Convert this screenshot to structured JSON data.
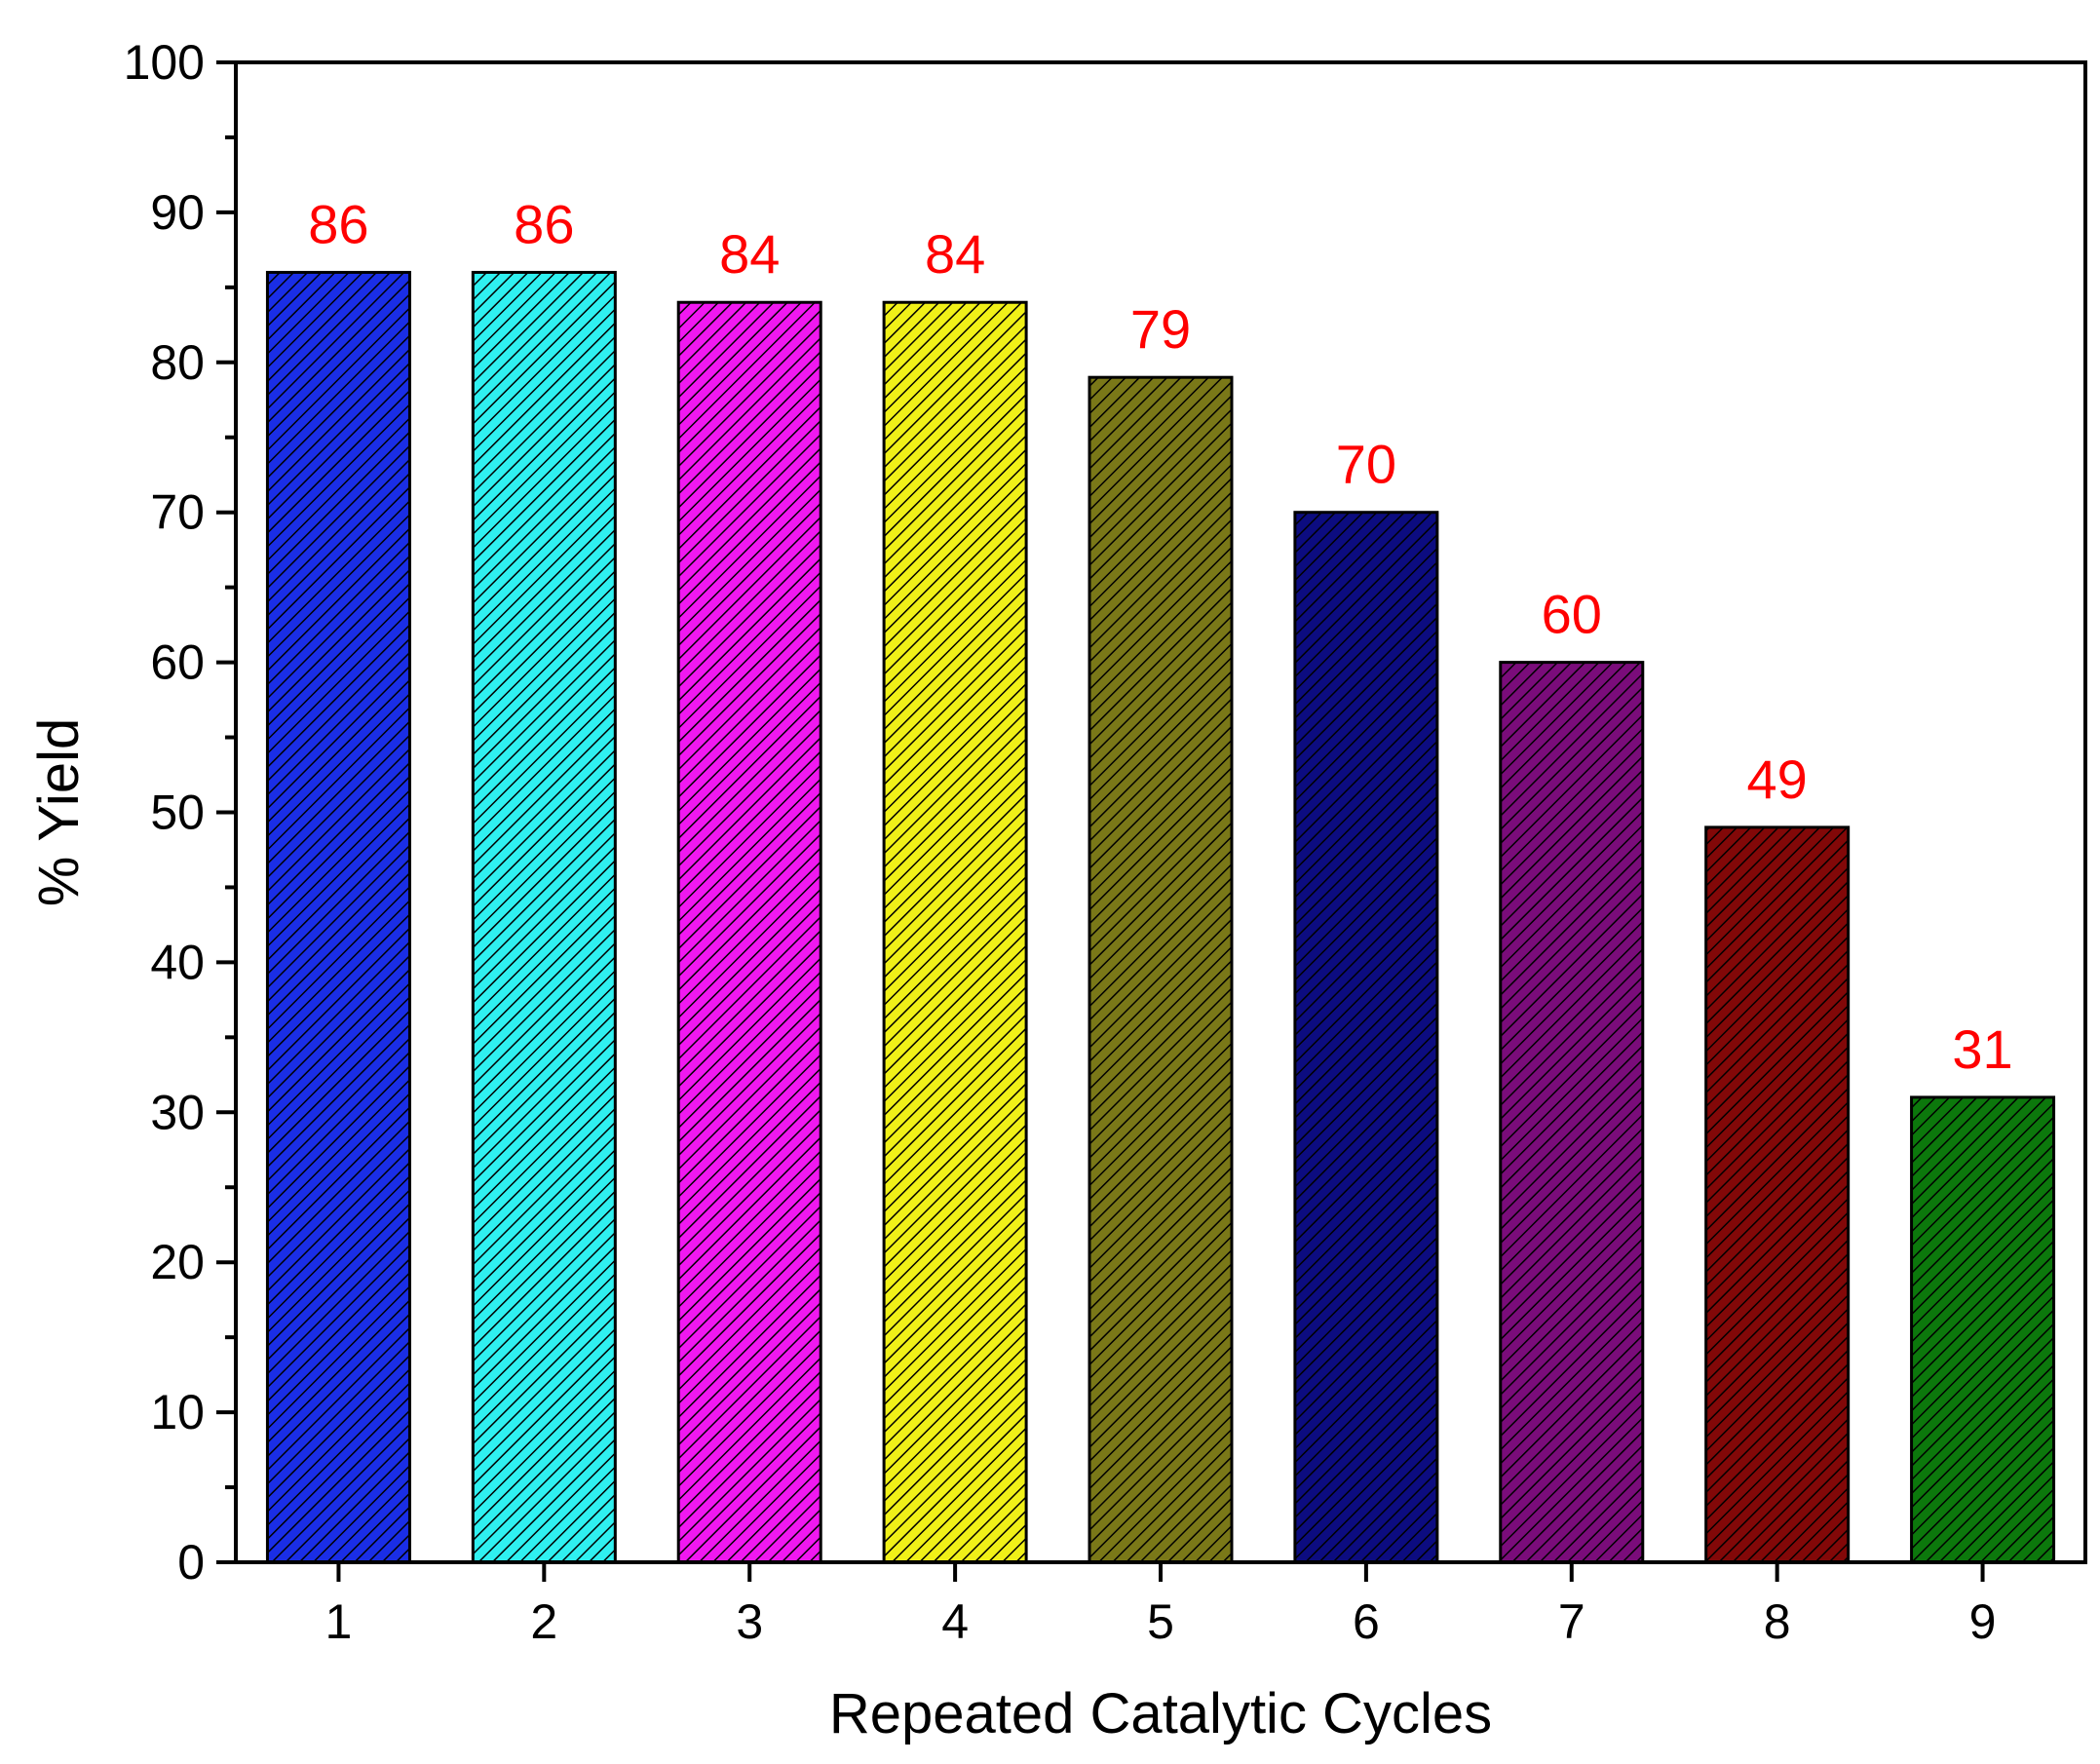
{
  "chart_data": {
    "type": "bar",
    "title": "",
    "xlabel": "Repeated Catalytic Cycles",
    "ylabel": "% Yield",
    "categories": [
      "1",
      "2",
      "3",
      "4",
      "5",
      "6",
      "7",
      "8",
      "9"
    ],
    "values": [
      86,
      86,
      84,
      84,
      79,
      70,
      60,
      49,
      31
    ],
    "data_labels": [
      "86",
      "86",
      "84",
      "84",
      "79",
      "70",
      "60",
      "49",
      "31"
    ],
    "bar_colors": [
      "#1a2ee6",
      "#2ff0f0",
      "#f018f0",
      "#f0f018",
      "#7a7818",
      "#0c0c80",
      "#7a0c7a",
      "#820808",
      "#0c780c"
    ],
    "label_color": "#ff0000",
    "hatch": "diagonal",
    "ylim": [
      0,
      100
    ],
    "yticks": [
      "0",
      "10",
      "20",
      "30",
      "40",
      "50",
      "60",
      "70",
      "80",
      "90",
      "100"
    ],
    "grid": false,
    "legend": "none"
  }
}
